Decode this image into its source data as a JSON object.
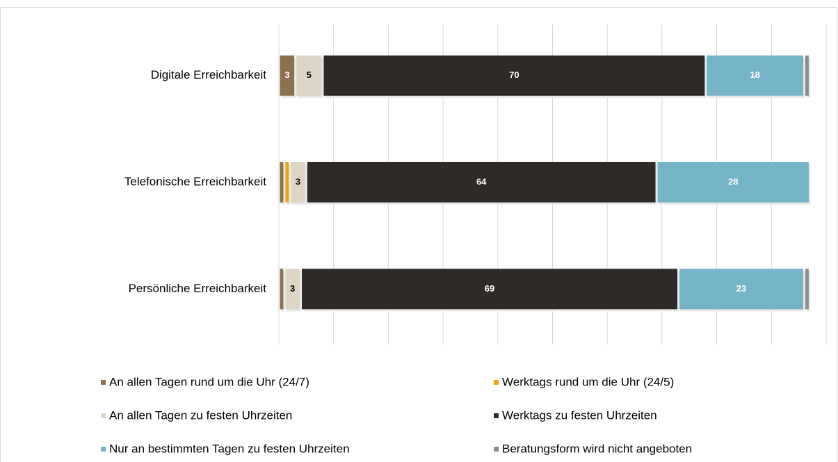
{
  "chart_data": {
    "type": "stacked_bar_horizontal",
    "categories": [
      "Digitale Erreichbarkeit",
      "Telefonische Erreichbarkeit",
      "Persönliche Erreichbarkeit"
    ],
    "series": [
      {
        "name": "An allen Tagen rund um die Uhr (24/7)",
        "color": "#8c7150",
        "label_color": "#ffffff",
        "values": [
          3,
          1,
          1
        ]
      },
      {
        "name": "Werktags rund um die Uhr (24/5)",
        "color": "#f0a30a",
        "label_color": "#000000",
        "values": [
          0,
          1,
          0
        ]
      },
      {
        "name": "An allen Tagen zu festen Uhrzeiten",
        "color": "#ddd5c5",
        "label_color": "#000000",
        "values": [
          5,
          3,
          3
        ]
      },
      {
        "name": "Werktags zu festen Uhrzeiten",
        "color": "#2e2a28",
        "label_color": "#ffffff",
        "values": [
          70,
          64,
          69
        ]
      },
      {
        "name": "Nur an bestimmten Tagen zu festen Uhrzeiten",
        "color": "#74b4c6",
        "label_color": "#ffffff",
        "values": [
          18,
          28,
          23
        ]
      },
      {
        "name": "Beratungsform wird nicht angeboten",
        "color": "#8c8c8c",
        "label_color": "#ffffff",
        "values": [
          1,
          0,
          1
        ]
      }
    ],
    "xlim": [
      0,
      100
    ],
    "xticks": [
      0,
      10,
      20,
      30,
      40,
      50,
      60,
      70,
      80,
      90,
      100
    ],
    "grid": true,
    "legend": "bottom"
  }
}
